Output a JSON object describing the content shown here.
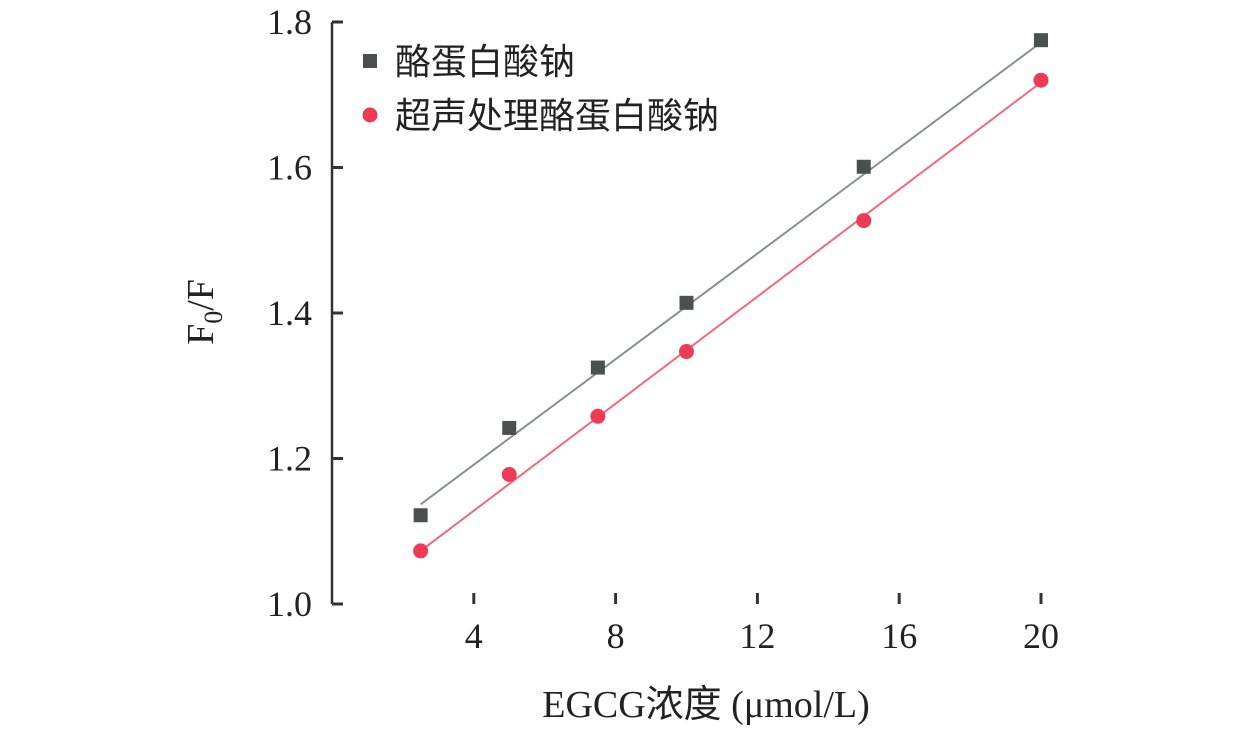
{
  "chart_data": {
    "type": "scatter",
    "title": "",
    "xlabel": "EGCG浓度 (μmol/L)",
    "ylabel_main": "F",
    "ylabel_sub": "0",
    "ylabel_tail": "/F",
    "xlim": [
      0,
      20
    ],
    "ylim": [
      1.0,
      1.8
    ],
    "xticks": [
      4,
      8,
      12,
      16,
      20
    ],
    "xtick_labels": [
      "4",
      "8",
      "12",
      "16",
      "20"
    ],
    "yticks": [
      1.0,
      1.2,
      1.4,
      1.6,
      1.8
    ],
    "ytick_labels": [
      "1.0",
      "1.2",
      "1.4",
      "1.6",
      "1.8"
    ],
    "grid": false,
    "legend_position": "top-left",
    "series": [
      {
        "name": "酪蛋白酸钠",
        "marker": "square",
        "color": "#4a4f52",
        "line_color": "#8a8f90",
        "x": [
          2.5,
          5,
          7.5,
          10,
          15,
          20
        ],
        "y": [
          1.122,
          1.242,
          1.325,
          1.414,
          1.601,
          1.775
        ],
        "fit": {
          "x": [
            2.5,
            20
          ],
          "y": [
            1.137,
            1.772
          ]
        }
      },
      {
        "name": "超声处理酪蛋白酸钠",
        "marker": "circle",
        "color": "#ee3b55",
        "line_color": "#f06a7c",
        "x": [
          2.5,
          5,
          7.5,
          10,
          15,
          20
        ],
        "y": [
          1.073,
          1.178,
          1.258,
          1.347,
          1.527,
          1.72
        ],
        "fit": {
          "x": [
            2.5,
            20
          ],
          "y": [
            1.073,
            1.717
          ]
        }
      }
    ]
  }
}
